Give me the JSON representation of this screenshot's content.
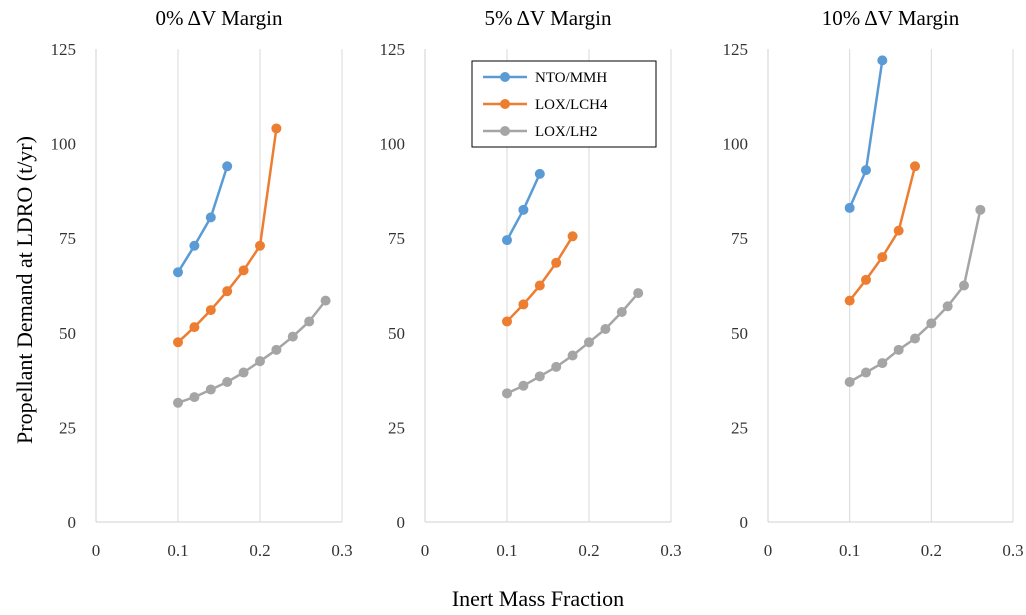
{
  "chart_data": {
    "type": "line",
    "xlabel": "Inert Mass Fraction",
    "ylabel": "Propellant Demand at LDRO (t/yr)",
    "xlim": [
      0,
      0.3
    ],
    "ylim": [
      0,
      125
    ],
    "xticks": [
      "0",
      "0.1",
      "0.2",
      "0.3"
    ],
    "yticks": [
      "0",
      "25",
      "50",
      "75",
      "100",
      "125"
    ],
    "grid": "vertical",
    "legend": {
      "placement": "top-left of middle panel",
      "entries": [
        "NTO/MMH",
        "LOX/LCH4",
        "LOX/LH2"
      ]
    },
    "colors": {
      "NTO/MMH": "#5b9bd5",
      "LOX/LCH4": "#ed7d31",
      "LOX/LH2": "#a5a5a5"
    },
    "panels": [
      {
        "title": "0% ΔV Margin",
        "series": [
          {
            "name": "NTO/MMH",
            "x": [
              0.1,
              0.12,
              0.14,
              0.16
            ],
            "y": [
              66,
              73,
              80.5,
              94
            ]
          },
          {
            "name": "LOX/LCH4",
            "x": [
              0.1,
              0.12,
              0.14,
              0.16,
              0.18,
              0.2,
              0.22
            ],
            "y": [
              47.5,
              51.5,
              56,
              61,
              66.5,
              73,
              104
            ]
          },
          {
            "name": "LOX/LH2",
            "x": [
              0.1,
              0.12,
              0.14,
              0.16,
              0.18,
              0.2,
              0.22,
              0.24,
              0.26,
              0.28
            ],
            "y": [
              31.5,
              33,
              35,
              37,
              39.5,
              42.5,
              45.5,
              49,
              53,
              58.5
            ]
          }
        ]
      },
      {
        "title": "5% ΔV Margin",
        "series": [
          {
            "name": "NTO/MMH",
            "x": [
              0.1,
              0.12,
              0.14
            ],
            "y": [
              74.5,
              82.5,
              92
            ]
          },
          {
            "name": "LOX/LCH4",
            "x": [
              0.1,
              0.12,
              0.14,
              0.16,
              0.18
            ],
            "y": [
              53,
              57.5,
              62.5,
              68.5,
              75.5
            ]
          },
          {
            "name": "LOX/LH2",
            "x": [
              0.1,
              0.12,
              0.14,
              0.16,
              0.18,
              0.2,
              0.22,
              0.24,
              0.26
            ],
            "y": [
              34,
              36,
              38.5,
              41,
              44,
              47.5,
              51,
              55.5,
              60.5
            ]
          }
        ]
      },
      {
        "title": "10% ΔV Margin",
        "series": [
          {
            "name": "NTO/MMH",
            "x": [
              0.1,
              0.12,
              0.14
            ],
            "y": [
              83,
              93,
              122
            ]
          },
          {
            "name": "LOX/LCH4",
            "x": [
              0.1,
              0.12,
              0.14,
              0.16,
              0.18
            ],
            "y": [
              58.5,
              64,
              70,
              77,
              94
            ]
          },
          {
            "name": "LOX/LH2",
            "x": [
              0.1,
              0.12,
              0.14,
              0.16,
              0.18,
              0.2,
              0.22,
              0.24,
              0.26
            ],
            "y": [
              37,
              39.5,
              42,
              45.5,
              48.5,
              52.5,
              57,
              62.5,
              82.5
            ]
          }
        ]
      }
    ]
  }
}
